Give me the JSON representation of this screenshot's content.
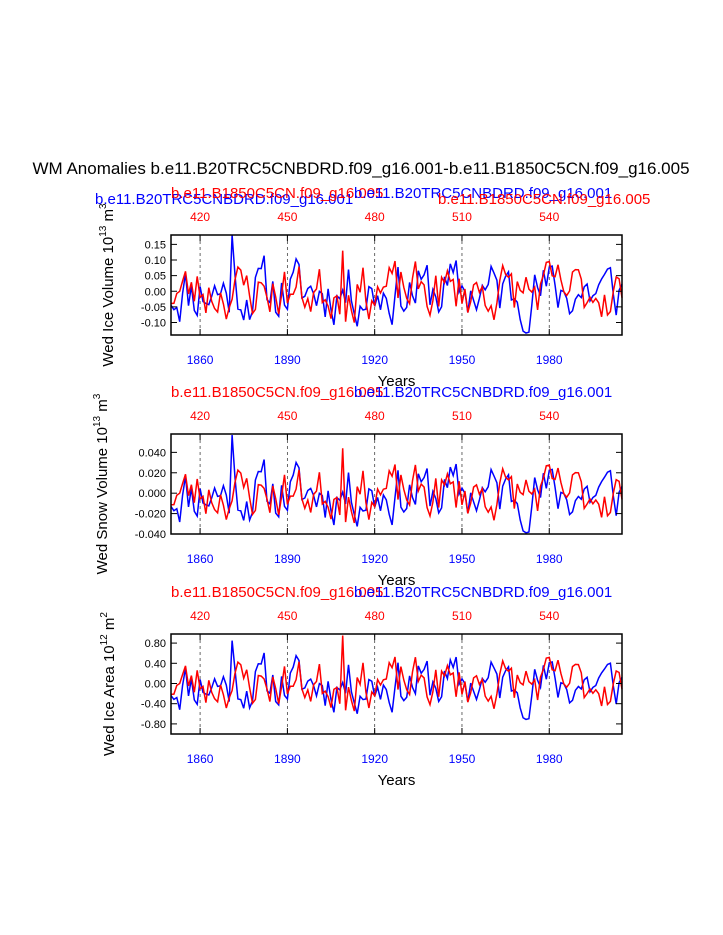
{
  "figure_title": "WM Anomalies b.e11.B20TRC5CNBDRD.f09_g16.001-b.e11.B1850C5CN.f09_g16.005",
  "colors": {
    "run_a": "#0000ff",
    "run_b": "#ff0000",
    "axis": "#000000"
  },
  "chart_data": [
    {
      "type": "line",
      "ylabel": "Wed Ice Volume 10^13 m^3",
      "ylabel_main": "Wed Ice Volume 10",
      "ylabel_exp": "13",
      "ylabel_unit": "m",
      "ylabel_unit_exp": "3",
      "xlabel": "Years",
      "legend_left": "b.e11.B20TRC5CNBDRD.f09_g16.001",
      "legend_left_overlap": "b.e11.B1850C5CN.f09_g16.005",
      "legend_right_top": "b.e11.B20TRC5CNBDRD.f09_g16.001",
      "legend_right_bottom": "b.e11.B1850C5CN.f09_g16.005",
      "ylim": [
        -0.14,
        0.18
      ],
      "yticks": [
        -0.1,
        -0.05,
        0.0,
        0.05,
        0.1,
        0.15
      ],
      "ytick_labels": [
        "-0.10",
        "-0.05",
        "0.00",
        "0.05",
        "0.10",
        "0.15"
      ],
      "x_bottom": {
        "range": [
          1850,
          2005
        ],
        "ticks": [
          1860,
          1890,
          1920,
          1950,
          1980
        ],
        "labels": [
          "1860",
          "1890",
          "1920",
          "1950",
          "1980"
        ]
      },
      "x_top": {
        "range": [
          410,
          565
        ],
        "ticks": [
          420,
          450,
          480,
          510,
          540
        ],
        "labels": [
          "420",
          "450",
          "480",
          "510",
          "540"
        ]
      },
      "series": [
        {
          "name": "b.e11.B20TRC5CNBDRD.f09_g16.001",
          "color": "#0000ff",
          "amp": 0.062,
          "seed": 11,
          "spike": 0.18,
          "min": -0.14
        },
        {
          "name": "b.e11.B1850C5CN.f09_g16.005",
          "color": "#ff0000",
          "amp": 0.055,
          "seed": 23,
          "spike": 0.13,
          "min": -0.13
        }
      ]
    },
    {
      "type": "line",
      "ylabel": "Wed Snow Volume 10^13 m^3",
      "ylabel_main": "Wed Snow Volume 10",
      "ylabel_exp": "13",
      "ylabel_unit": "m",
      "ylabel_unit_exp": "3",
      "xlabel": "Years",
      "legend_left": "b.e11.B1850C5CN.f09_g16.005",
      "legend_right": "b.e11.B20TRC5CNBDRD.f09_g16.001",
      "ylim": [
        -0.04,
        0.058
      ],
      "yticks": [
        -0.04,
        -0.02,
        0.0,
        0.02,
        0.04
      ],
      "ytick_labels": [
        "-0.040",
        "-0.020",
        "0.000",
        "0.020",
        "0.040"
      ],
      "x_bottom": {
        "range": [
          1850,
          2005
        ],
        "ticks": [
          1860,
          1890,
          1920,
          1950,
          1980
        ],
        "labels": [
          "1860",
          "1890",
          "1920",
          "1950",
          "1980"
        ]
      },
      "x_top": {
        "range": [
          410,
          565
        ],
        "ticks": [
          420,
          450,
          480,
          510,
          540
        ],
        "labels": [
          "420",
          "450",
          "480",
          "510",
          "540"
        ]
      },
      "series": [
        {
          "name": "b.e11.B20TRC5CNBDRD.f09_g16.001",
          "color": "#0000ff",
          "amp": 0.018,
          "seed": 11,
          "spike": 0.057,
          "min": -0.039
        },
        {
          "name": "b.e11.B1850C5CN.f09_g16.005",
          "color": "#ff0000",
          "amp": 0.016,
          "seed": 23,
          "spike": 0.044,
          "min": -0.038
        }
      ]
    },
    {
      "type": "line",
      "ylabel": "Wed Ice Area 10^12 m^2",
      "ylabel_main": "Wed Ice Area 10",
      "ylabel_exp": "12",
      "ylabel_unit": "m",
      "ylabel_unit_exp": "2",
      "xlabel": "Years",
      "legend_left": "b.e11.B1850C5CN.f09_g16.005",
      "legend_right": "b.e11.B20TRC5CNBDRD.f09_g16.001",
      "ylim": [
        -1.0,
        0.98
      ],
      "yticks": [
        -0.8,
        -0.4,
        0.0,
        0.4,
        0.8
      ],
      "ytick_labels": [
        "-0.80",
        "-0.40",
        "0.00",
        "0.40",
        "0.80"
      ],
      "x_bottom": {
        "range": [
          1850,
          2005
        ],
        "ticks": [
          1860,
          1890,
          1920,
          1950,
          1980
        ],
        "labels": [
          "1860",
          "1890",
          "1920",
          "1950",
          "1980"
        ]
      },
      "x_top": {
        "range": [
          410,
          565
        ],
        "ticks": [
          420,
          450,
          480,
          510,
          540
        ],
        "labels": [
          "420",
          "450",
          "480",
          "510",
          "540"
        ]
      },
      "series": [
        {
          "name": "b.e11.B20TRC5CNBDRD.f09_g16.001",
          "color": "#0000ff",
          "amp": 0.33,
          "seed": 11,
          "spike": 0.85,
          "min": -0.85
        },
        {
          "name": "b.e11.B1850C5CN.f09_g16.005",
          "color": "#ff0000",
          "amp": 0.3,
          "seed": 23,
          "spike": 0.95,
          "min": -0.95
        }
      ]
    }
  ]
}
